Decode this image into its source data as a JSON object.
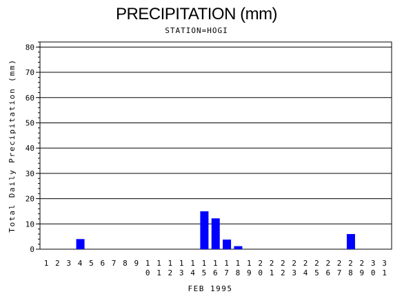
{
  "chart_data": {
    "type": "bar",
    "title": "PRECIPITATION (mm)",
    "subtitle": "STATION=HOGI",
    "xlabel": "FEB 1995",
    "ylabel": "Total Daily Precipitation (mm)",
    "ylim": [
      0,
      82
    ],
    "yticks": [
      0,
      10,
      20,
      30,
      40,
      50,
      60,
      70,
      80
    ],
    "grid": true,
    "bar_color": "#0000ff",
    "categories": [
      "1",
      "2",
      "3",
      "4",
      "5",
      "6",
      "7",
      "8",
      "9",
      "10",
      "11",
      "12",
      "13",
      "14",
      "15",
      "16",
      "17",
      "18",
      "19",
      "20",
      "21",
      "22",
      "23",
      "24",
      "25",
      "26",
      "27",
      "28",
      "29",
      "30",
      "31"
    ],
    "values": [
      0,
      0,
      0,
      4,
      0,
      0,
      0,
      0,
      0,
      0,
      0,
      0,
      0,
      0,
      15,
      12.2,
      3.8,
      1.2,
      0,
      0,
      0,
      0,
      0,
      0,
      0,
      0,
      0,
      6,
      0,
      0,
      0
    ]
  }
}
